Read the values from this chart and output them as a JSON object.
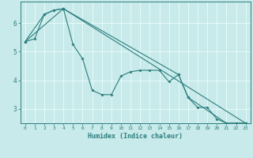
{
  "xlabel": "Humidex (Indice chaleur)",
  "ylabel": "",
  "background_color": "#c8eaea",
  "line_color": "#2d7d7d",
  "grid_color": "#f0ffff",
  "xlim": [
    -0.5,
    23.5
  ],
  "ylim": [
    2.5,
    6.75
  ],
  "xticks": [
    0,
    1,
    2,
    3,
    4,
    5,
    6,
    7,
    8,
    9,
    10,
    11,
    12,
    13,
    14,
    15,
    16,
    17,
    18,
    19,
    20,
    21,
    22,
    23
  ],
  "yticks": [
    3,
    4,
    5,
    6
  ],
  "line1_x": [
    0,
    1,
    2,
    3,
    4,
    5,
    6,
    7,
    8,
    9,
    10,
    11,
    12,
    13,
    14,
    15,
    16,
    17,
    18,
    19,
    20,
    21,
    22,
    23
  ],
  "line1_y": [
    5.35,
    5.45,
    6.3,
    6.45,
    6.5,
    5.25,
    4.75,
    3.65,
    3.5,
    3.5,
    4.15,
    4.3,
    4.35,
    4.35,
    4.35,
    3.95,
    4.2,
    3.4,
    3.05,
    3.05,
    2.65,
    2.5,
    2.5,
    2.5
  ],
  "line2_x": [
    0,
    4,
    23
  ],
  "line2_y": [
    5.35,
    6.5,
    2.5
  ],
  "line3_x": [
    0,
    2,
    3,
    4,
    16,
    17,
    21,
    22,
    23
  ],
  "line3_y": [
    5.35,
    6.3,
    6.45,
    6.5,
    4.2,
    3.4,
    2.5,
    2.5,
    2.5
  ]
}
